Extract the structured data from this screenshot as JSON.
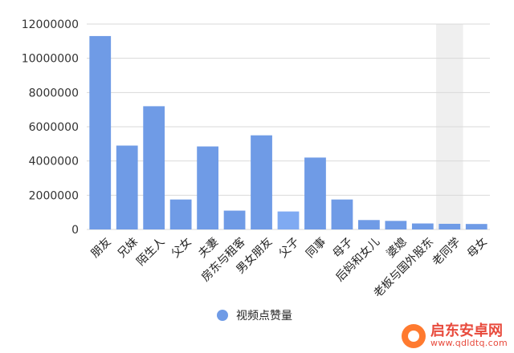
{
  "chart_data": {
    "type": "bar",
    "title": "",
    "xlabel": "",
    "ylabel": "",
    "ylim": [
      0,
      12000000
    ],
    "yticks": [
      0,
      2000000,
      4000000,
      6000000,
      8000000,
      10000000,
      12000000
    ],
    "categories": [
      "朋友",
      "兄妹",
      "陌生人",
      "父女",
      "夫妻",
      "房东与租客",
      "男女朋友",
      "父子",
      "同事",
      "母子",
      "后妈和女儿",
      "婆媳",
      "老板与国外股东",
      "老同学",
      "母女"
    ],
    "series": [
      {
        "name": "视频点赞量",
        "values": [
          11300000,
          4900000,
          7200000,
          1750000,
          4850000,
          1100000,
          5500000,
          1050000,
          4200000,
          1750000,
          550000,
          500000,
          350000,
          330000,
          320000
        ]
      }
    ],
    "highlighted_category": "父子",
    "hovered_category": "老同学",
    "grid": true,
    "legend_position": "bottom",
    "colors": {
      "bar": "#6f9be6",
      "bar_highlight": "#7faaf2",
      "grid": "#d9d9d9",
      "hover_band": "#efefef"
    }
  },
  "watermark": {
    "title": "启东安卓网",
    "url": "www.qdldtq.com"
  }
}
